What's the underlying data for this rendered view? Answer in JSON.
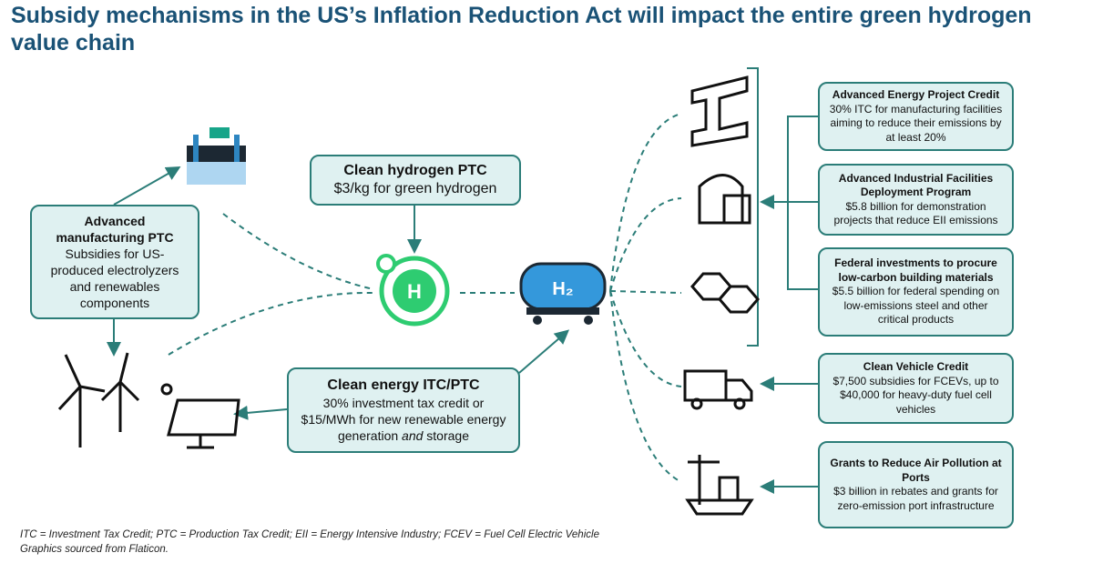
{
  "header": {
    "title": "Subsidy mechanisms in the US’s Inflation Reduction Act will impact the entire green hydrogen value chain"
  },
  "left_boxes": [
    {
      "title": "Advanced manufacturing PTC",
      "body": "Subsidies for US-produced electrolyzers and renewables components"
    },
    {
      "title": "Clean hydrogen PTC",
      "body": "$3/kg for green hydrogen"
    },
    {
      "title": "Clean energy ITC/PTC",
      "body_parts": [
        "30% investment tax credit or $15/MWh for new renewable energy generation ",
        "and",
        " storage"
      ]
    }
  ],
  "icons": {
    "hydrogen": "H",
    "tank": "H₂"
  },
  "right_boxes": [
    {
      "title": "Advanced Energy Project Credit",
      "body": "30% ITC for manufacturing facilities aiming to reduce their emissions by at least 20%"
    },
    {
      "title": "Advanced Industrial Facilities Deployment Program",
      "body": "$5.8 billion for demonstration projects that reduce EII emissions"
    },
    {
      "title": "Federal investments to procure low-carbon building materials",
      "body": "$5.5 billion for federal spending on low-emissions steel and other critical products"
    },
    {
      "title": "Clean Vehicle Credit",
      "body": "$7,500 subsidies for FCEVs, up to $40,000 for heavy-duty fuel cell vehicles"
    },
    {
      "title": "Grants to Reduce Air Pollution at Ports",
      "body": "$3 billion in rebates and grants for zero-emission port infrastructure"
    }
  ],
  "footnotes": [
    "ITC = Investment Tax Credit; PTC = Production Tax Credit; EII = Energy Intensive Industry; FCEV = Fuel Cell Electric Vehicle",
    "Graphics sourced from Flaticon."
  ]
}
